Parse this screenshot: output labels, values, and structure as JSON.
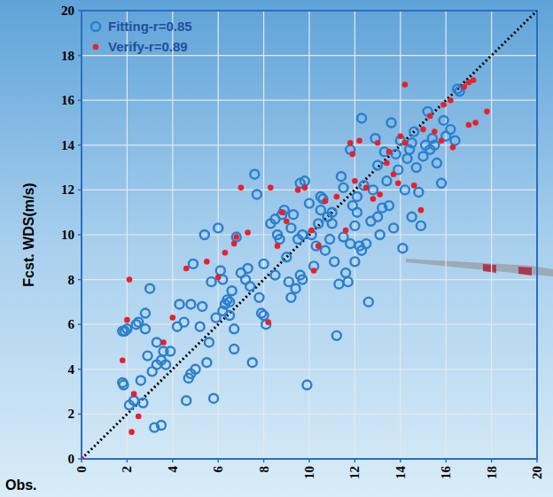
{
  "chart_data": {
    "type": "scatter",
    "x_label": "Obs.",
    "y_label": "Fcst. WDS(m/s)",
    "xlim": [
      0,
      20
    ],
    "ylim": [
      0,
      20
    ],
    "xticks": [
      0,
      2,
      4,
      6,
      8,
      10,
      12,
      14,
      16,
      18,
      20
    ],
    "yticks": [
      0,
      2,
      4,
      6,
      8,
      10,
      12,
      14,
      16,
      18,
      20
    ],
    "grid": true,
    "legend": "upper left",
    "series": [
      {
        "name": "Fitting-r=0.85",
        "color": "#2a7fd0",
        "marker": "open-circle",
        "x": [
          1.8,
          1.9,
          2.0,
          1.8,
          1.85,
          2.1,
          2.3,
          2.4,
          2.5,
          2.6,
          2.7,
          2.8,
          2.8,
          2.9,
          3.0,
          3.1,
          3.2,
          3.3,
          3.3,
          3.5,
          3.5,
          3.6,
          3.7,
          3.9,
          4.2,
          4.3,
          4.5,
          4.6,
          4.7,
          4.8,
          4.8,
          4.9,
          5.0,
          5.2,
          5.3,
          5.4,
          5.5,
          5.6,
          5.7,
          5.8,
          5.9,
          6.0,
          6.1,
          6.2,
          6.2,
          6.3,
          6.4,
          6.5,
          6.6,
          6.7,
          6.7,
          6.8,
          7.0,
          7.2,
          7.4,
          7.5,
          7.6,
          7.7,
          7.8,
          7.9,
          8.0,
          8.0,
          8.1,
          8.3,
          8.5,
          8.6,
          8.7,
          8.8,
          8.9,
          9.0,
          9.1,
          9.2,
          9.2,
          9.3,
          9.4,
          9.5,
          9.6,
          9.6,
          9.7,
          9.8,
          9.9,
          10.0,
          10.1,
          10.2,
          10.3,
          10.4,
          10.5,
          10.6,
          10.7,
          10.8,
          10.9,
          11.0,
          11.1,
          11.2,
          11.3,
          11.4,
          11.5,
          11.5,
          11.6,
          11.7,
          11.8,
          11.9,
          12.0,
          12.0,
          12.1,
          12.2,
          12.3,
          12.4,
          12.5,
          12.6,
          12.7,
          12.8,
          12.9,
          13.0,
          13.1,
          13.2,
          13.4,
          13.5,
          13.6,
          13.7,
          13.8,
          13.9,
          14.0,
          14.1,
          14.2,
          14.3,
          14.4,
          14.5,
          14.6,
          14.7,
          14.8,
          14.9,
          15.0,
          15.1,
          15.2,
          15.3,
          15.4,
          15.5,
          15.6,
          15.8,
          15.9,
          16.0,
          16.2,
          16.4,
          16.5,
          16.6,
          13.0,
          12.1,
          11.0,
          10.5,
          9.7,
          8.5,
          7.3,
          6.5,
          11.8,
          12.3,
          13.3,
          14.5
        ],
        "values": [
          5.7,
          5.7,
          5.8,
          3.4,
          3.3,
          2.4,
          2.6,
          6.0,
          6.1,
          3.5,
          2.5,
          5.8,
          6.5,
          4.6,
          7.6,
          3.9,
          1.4,
          4.2,
          5.2,
          1.5,
          4.4,
          4.8,
          4.2,
          4.8,
          5.9,
          6.9,
          6.1,
          2.6,
          3.6,
          3.8,
          6.9,
          8.7,
          4.0,
          5.9,
          6.8,
          10.0,
          4.3,
          5.2,
          7.9,
          2.7,
          6.3,
          10.3,
          8.4,
          8.0,
          6.6,
          6.9,
          7.1,
          6.4,
          7.5,
          4.9,
          5.8,
          9.9,
          8.3,
          8.0,
          7.7,
          4.3,
          12.7,
          11.8,
          7.2,
          6.5,
          6.4,
          8.7,
          6.0,
          10.5,
          10.7,
          10.0,
          9.8,
          10.9,
          11.1,
          9.0,
          7.9,
          7.2,
          10.3,
          10.9,
          7.6,
          9.8,
          12.3,
          8.2,
          8.0,
          12.4,
          3.3,
          11.4,
          10.0,
          8.6,
          9.5,
          10.5,
          11.1,
          11.6,
          9.3,
          10.8,
          9.8,
          10.5,
          8.8,
          5.5,
          7.8,
          12.6,
          12.1,
          9.9,
          8.3,
          7.9,
          13.8,
          11.3,
          10.4,
          8.8,
          11.7,
          9.5,
          15.2,
          12.2,
          9.6,
          7.0,
          10.6,
          12.0,
          14.3,
          10.8,
          10.0,
          11.2,
          12.4,
          11.3,
          15.0,
          10.3,
          13.6,
          12.9,
          14.2,
          9.4,
          12.0,
          13.4,
          13.8,
          10.8,
          14.6,
          13.0,
          11.9,
          10.4,
          13.5,
          14.0,
          15.5,
          13.8,
          14.3,
          14.0,
          13.2,
          12.3,
          15.1,
          14.4,
          14.7,
          14.2,
          16.5,
          16.4,
          13.1,
          11.0,
          11.0,
          11.7,
          10.0,
          8.2,
          8.5,
          7.0,
          9.6,
          9.3,
          13.7,
          14.1
        ]
      },
      {
        "name": "Verify-r=0.89",
        "color": "#e8202a",
        "marker": "dot",
        "x": [
          0,
          1.8,
          2.0,
          2.1,
          2.2,
          2.3,
          2.5,
          3.6,
          4.0,
          4.6,
          5.5,
          6.0,
          6.3,
          6.7,
          6.8,
          7.0,
          7.3,
          8.2,
          8.3,
          8.6,
          8.8,
          9.0,
          9.5,
          9.8,
          10.1,
          10.2,
          10.4,
          10.7,
          11.2,
          11.6,
          11.8,
          11.9,
          12.2,
          12.5,
          12.8,
          13.1,
          13.4,
          13.5,
          13.7,
          13.9,
          14.0,
          14.2,
          14.2,
          14.6,
          14.9,
          15.0,
          15.3,
          15.5,
          15.8,
          15.9,
          16.2,
          16.3,
          16.8,
          17.0,
          17.0,
          17.3,
          17.8,
          17.2,
          12.0,
          13.0
        ],
        "values": [
          0,
          4.4,
          6.2,
          8.0,
          1.2,
          2.9,
          1.9,
          5.2,
          6.3,
          8.5,
          8.8,
          8.1,
          9.2,
          9.6,
          9.9,
          12.1,
          10.1,
          6.1,
          12.1,
          9.5,
          11.0,
          10.6,
          12.0,
          12.1,
          10.2,
          8.4,
          9.5,
          11.5,
          11.7,
          10.2,
          14.1,
          13.6,
          14.2,
          12.1,
          11.6,
          11.8,
          13.2,
          13.7,
          12.7,
          12.3,
          14.4,
          16.7,
          14.1,
          12.2,
          11.1,
          14.7,
          15.3,
          14.6,
          14.2,
          15.8,
          16.0,
          13.9,
          16.6,
          14.9,
          16.8,
          15.0,
          15.5,
          16.9,
          12.4,
          14.1
        ]
      }
    ]
  }
}
